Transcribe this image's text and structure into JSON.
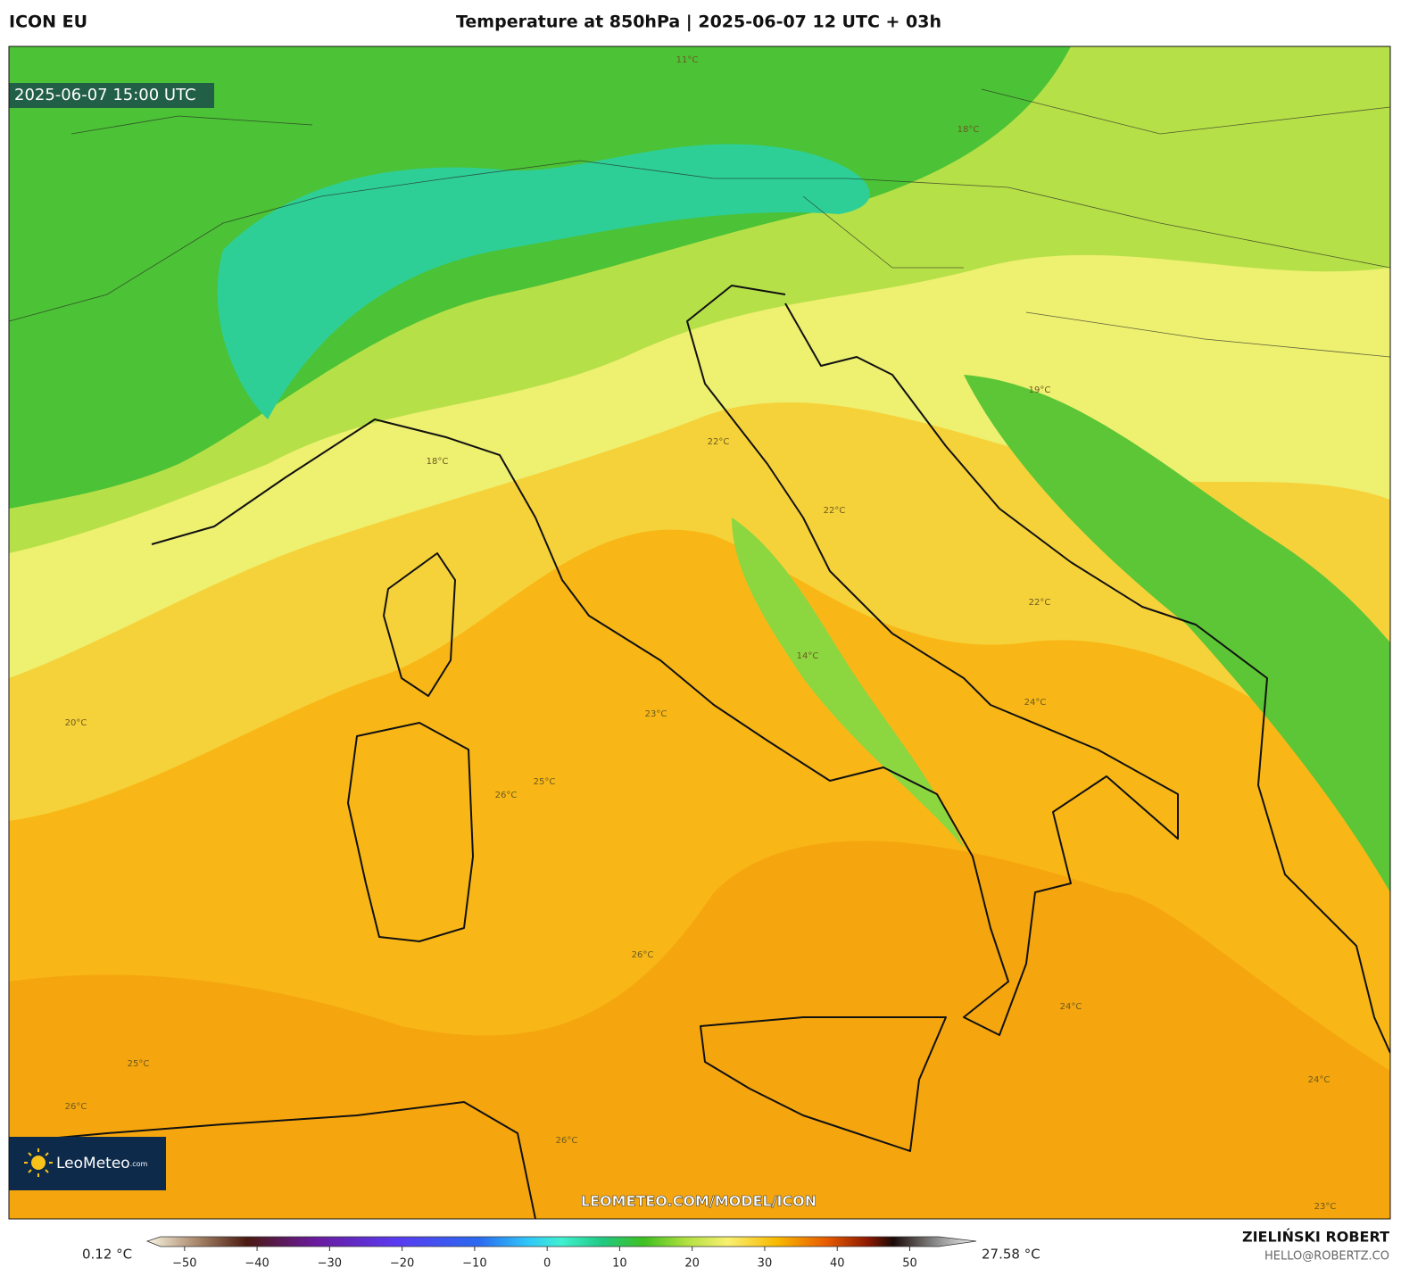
{
  "header": {
    "model": "ICON EU",
    "title": "Temperature at 850hPa | 2025-06-07 12 UTC + 03h",
    "valid_time": "2025-06-07 15:00 UTC"
  },
  "contour_labels": [
    "22°C",
    "18°C",
    "22°C",
    "23°C",
    "24°C",
    "25°C",
    "26°C",
    "26°C",
    "24°C",
    "25°C",
    "26°C",
    "20°C",
    "19°C",
    "18°C",
    "11°C",
    "26°C",
    "23°C",
    "24°C",
    "22°C",
    "14°C"
  ],
  "colorbar": {
    "min_label": "0.12 °C",
    "max_label": "27.58 °C",
    "lim": [
      -53.3,
      54
    ],
    "ticks": [
      {
        "value": -50,
        "label": "−50"
      },
      {
        "value": -40,
        "label": "−40"
      },
      {
        "value": -30,
        "label": "−30"
      },
      {
        "value": -20,
        "label": "−20"
      },
      {
        "value": -10,
        "label": "−10"
      },
      0,
      10,
      20,
      30,
      40,
      50
    ]
  },
  "logo": {
    "name": "LeoMeteo",
    "suffix": ".com"
  },
  "watermark": "LEOMETEO.COM/MODEL/ICON",
  "credits": {
    "author": "ZIELIŃSKI ROBERT",
    "contact": "HELLO@ROBERTZ.CO"
  }
}
